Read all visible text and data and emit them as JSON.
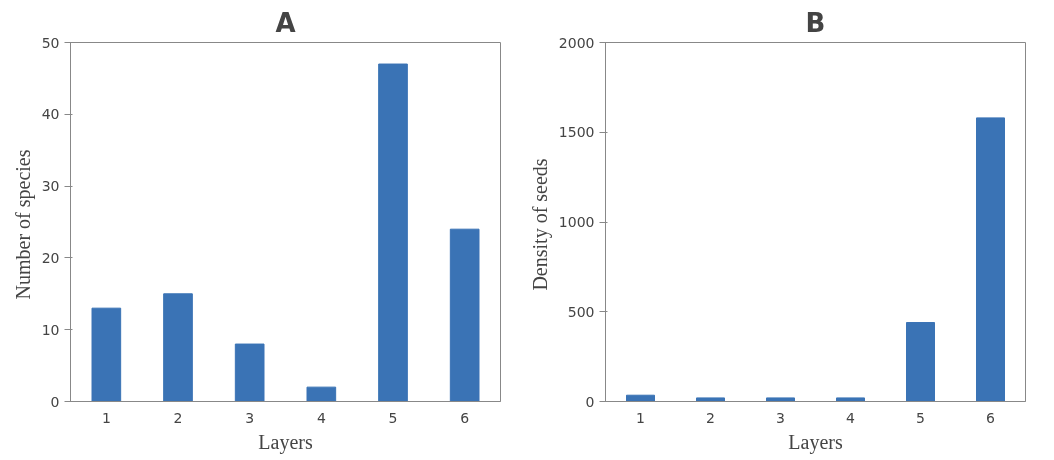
{
  "chart_data": [
    {
      "type": "bar",
      "title": "A",
      "categories": [
        "1",
        "2",
        "3",
        "4",
        "5",
        "6"
      ],
      "values": [
        13,
        15,
        8,
        2,
        47,
        24
      ],
      "color": "#3a73b5",
      "xlabel": "Layers",
      "ylabel": "Number  of species",
      "ylim": [
        0,
        50
      ],
      "yticks": [
        0,
        10,
        20,
        30,
        40,
        50
      ],
      "grid": false
    },
    {
      "type": "bar",
      "title": "B",
      "categories": [
        "1",
        "2",
        "3",
        "4",
        "5",
        "6"
      ],
      "values": [
        35,
        20,
        20,
        20,
        440,
        1580
      ],
      "color": "#3a73b5",
      "xlabel": "Layers",
      "ylabel": "Density  of seeds",
      "ylim": [
        0,
        2000
      ],
      "yticks": [
        0,
        500,
        1000,
        1500,
        2000
      ],
      "grid": false
    }
  ]
}
